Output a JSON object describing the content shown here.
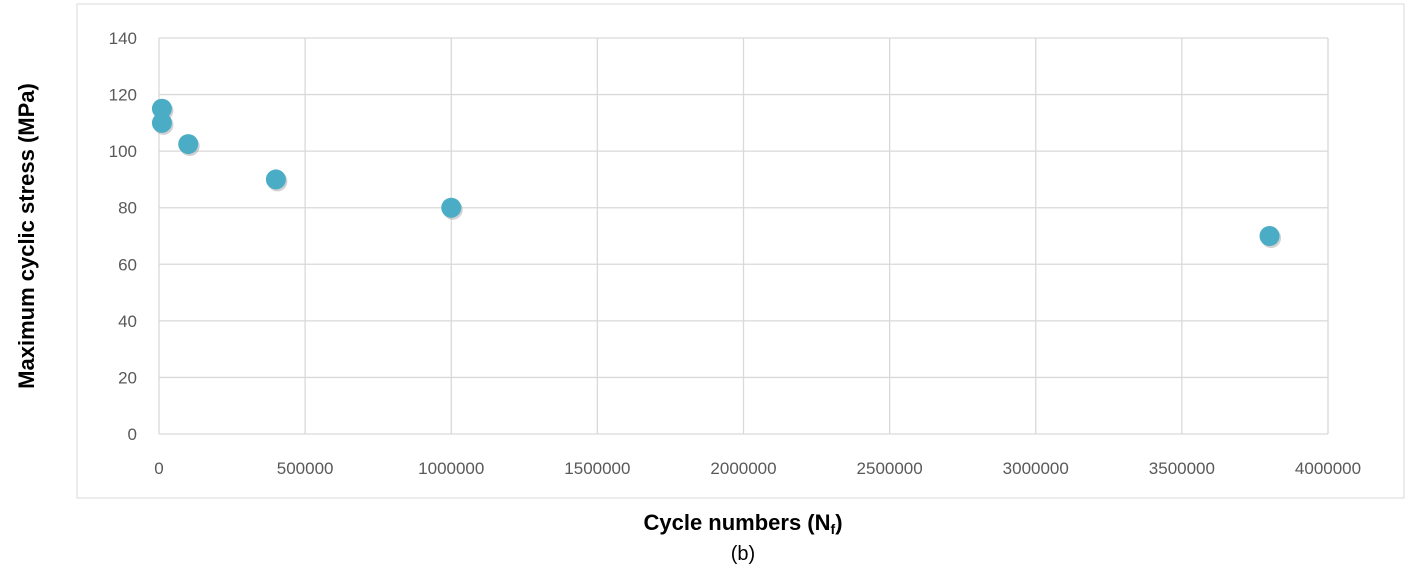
{
  "chart_data": {
    "type": "scatter",
    "xlabel": "Cycle numbers (N",
    "xlabel_subscript": "f",
    "xlabel_suffix": ")",
    "ylabel": "Maximum cyclic stress (MPa)",
    "caption": "(b)",
    "xlim": [
      0,
      4000000
    ],
    "ylim": [
      0,
      140
    ],
    "x_ticks": [
      0,
      500000,
      1000000,
      1500000,
      2000000,
      2500000,
      3000000,
      3500000,
      4000000
    ],
    "y_ticks": [
      0,
      20,
      40,
      60,
      80,
      100,
      120,
      140
    ],
    "grid": true,
    "legend": "none",
    "marker_color": "#4bacc6",
    "series": [
      {
        "points": [
          {
            "x": 10000,
            "y": 115
          },
          {
            "x": 10000,
            "y": 110
          },
          {
            "x": 100000,
            "y": 102.5
          },
          {
            "x": 400000,
            "y": 90
          },
          {
            "x": 1000000,
            "y": 80
          },
          {
            "x": 3800000,
            "y": 70
          }
        ]
      }
    ]
  }
}
